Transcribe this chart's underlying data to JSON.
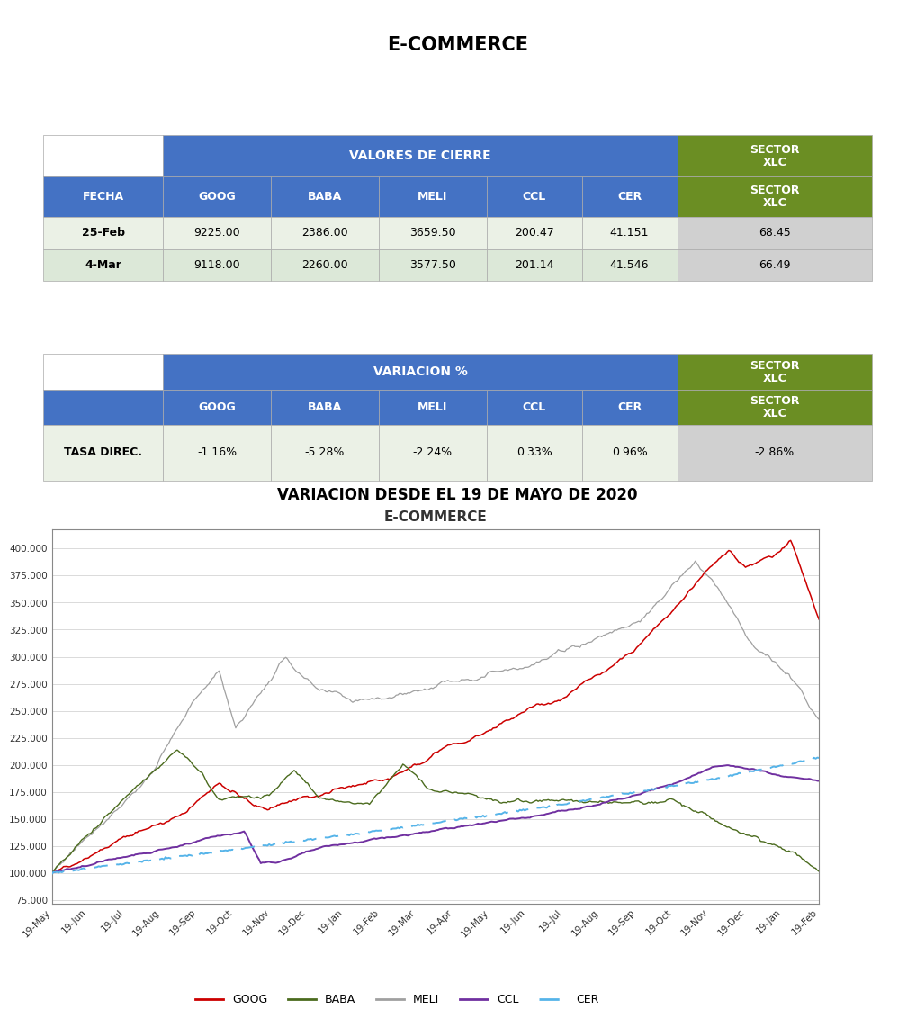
{
  "title": "E-COMMERCE",
  "table1_header_main": "VALORES DE CIERRE",
  "table1_col_labels": [
    "FECHA",
    "GOOG",
    "BABA",
    "MELI",
    "CCL",
    "CER",
    "SECTOR\nXLC"
  ],
  "table1_rows": [
    [
      "25-Feb",
      "9225.00",
      "2386.00",
      "3659.50",
      "200.47",
      "41.151",
      "68.45"
    ],
    [
      "4-Mar",
      "9118.00",
      "2260.00",
      "3577.50",
      "201.14",
      "41.546",
      "66.49"
    ]
  ],
  "table2_header_main": "VARIACION %",
  "table2_col_labels": [
    "",
    "GOOG",
    "BABA",
    "MELI",
    "CCL",
    "CER",
    "SECTOR\nXLC"
  ],
  "table2_rows": [
    [
      "TASA DIREC.",
      "-1.16%",
      "-5.28%",
      "-2.24%",
      "0.33%",
      "0.96%",
      "-2.86%"
    ]
  ],
  "chart_section_title": "VARIACION DESDE EL 19 DE MAYO DE 2020",
  "chart_inner_title": "E-COMMERCE",
  "blue_color": "#4472C4",
  "green_color": "#6B8E23",
  "row_color_a": "#EBF1E6",
  "row_color_b": "#DCE8D8",
  "sector_col_color": "#D0D0D0",
  "border_color": "#AAAAAA",
  "ytick_values": [
    75000,
    100000,
    125000,
    150000,
    175000,
    200000,
    225000,
    250000,
    275000,
    300000,
    325000,
    350000,
    375000,
    400000
  ],
  "ytick_labels": [
    "75.000",
    "100.000",
    "125.000",
    "150.000",
    "175.000",
    "200.000",
    "225.000",
    "250.000",
    "275.000",
    "300.000",
    "325.000",
    "350.000",
    "375.000",
    "400.000"
  ],
  "xtick_labels": [
    "19-May",
    "19-Jun",
    "19-Jul",
    "19-Aug",
    "19-Sep",
    "19-Oct",
    "19-Nov",
    "19-Dec",
    "19-Jan",
    "19-Feb",
    "19-Mar",
    "19-Apr",
    "19-May",
    "19-Jun",
    "19-Jul",
    "19-Aug",
    "19-Sep",
    "19-Oct",
    "19-Nov",
    "19-Dec",
    "19-Jan",
    "19-Feb"
  ],
  "line_colors": {
    "GOOG": "#CC0000",
    "BABA": "#4B6B1E",
    "MELI": "#A0A0A0",
    "CCL": "#7030A0",
    "CER": "#56B4E9"
  },
  "col_widths": [
    0.145,
    0.13,
    0.13,
    0.13,
    0.115,
    0.115,
    0.115
  ]
}
